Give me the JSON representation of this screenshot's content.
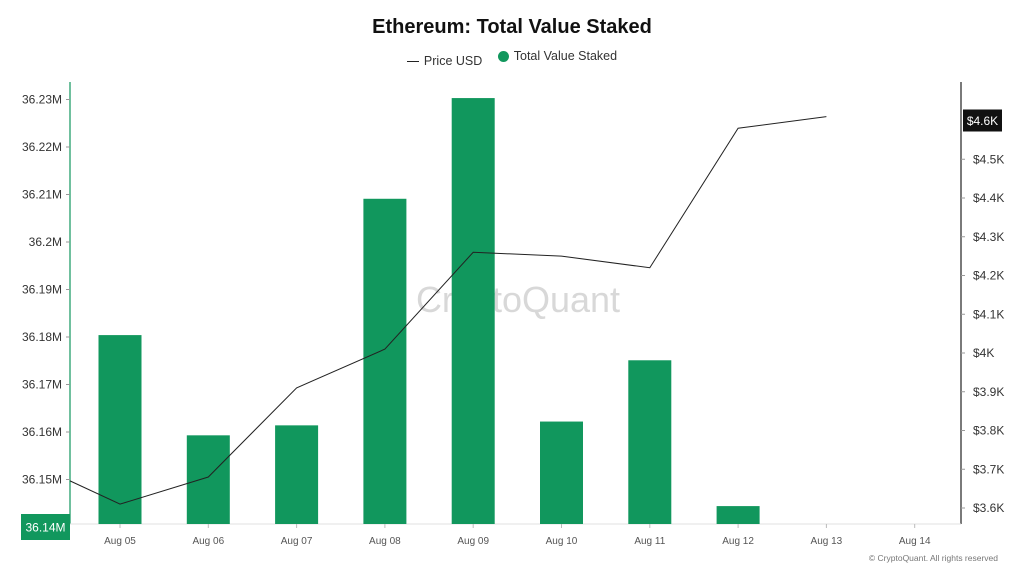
{
  "watermark": "CryptoQuant",
  "copyright": "© CryptoQuant. All rights reserved",
  "colors": {
    "bar": "#11975d",
    "line": "#222222",
    "badge_right": "#111111",
    "badge_left": "#11975d"
  },
  "chart_data": {
    "type": "bar",
    "title": "Ethereum: Total Value Staked",
    "legend_position": "top-center",
    "grid": false,
    "categories": [
      "Aug 05",
      "Aug 06",
      "Aug 07",
      "Aug 08",
      "Aug 09",
      "Aug 10",
      "Aug 11",
      "Aug 12",
      "Aug 13",
      "Aug 14"
    ],
    "series": [
      {
        "name": "Total Value Staked",
        "type": "bar",
        "axis": "left",
        "values": [
          36.1804,
          36.1593,
          36.1614,
          36.2091,
          36.2303,
          36.1622,
          36.1751,
          36.1444,
          null,
          null
        ]
      },
      {
        "name": "Price USD",
        "type": "line",
        "axis": "right",
        "values": [
          3610,
          3680,
          3910,
          4010,
          4260,
          4250,
          4220,
          4580,
          4610,
          null
        ],
        "start_value": 3670
      }
    ],
    "y_left": {
      "ticks": [
        36.15,
        36.16,
        36.17,
        36.18,
        36.19,
        36.2,
        36.21,
        36.22,
        36.23
      ],
      "tick_labels": [
        "36.15M",
        "36.16M",
        "36.17M",
        "36.18M",
        "36.19M",
        "36.2M",
        "36.21M",
        "36.22M",
        "36.23M"
      ],
      "current": 36.14,
      "current_label": "36.14M"
    },
    "y_right": {
      "ticks": [
        3600,
        3700,
        3800,
        3900,
        4000,
        4100,
        4200,
        4300,
        4400,
        4500
      ],
      "tick_labels": [
        "$3.6K",
        "$3.7K",
        "$3.8K",
        "$3.9K",
        "$4K",
        "$4.1K",
        "$4.2K",
        "$4.3K",
        "$4.4K",
        "$4.5K"
      ],
      "current": 4600,
      "current_label": "$4.6K"
    }
  }
}
